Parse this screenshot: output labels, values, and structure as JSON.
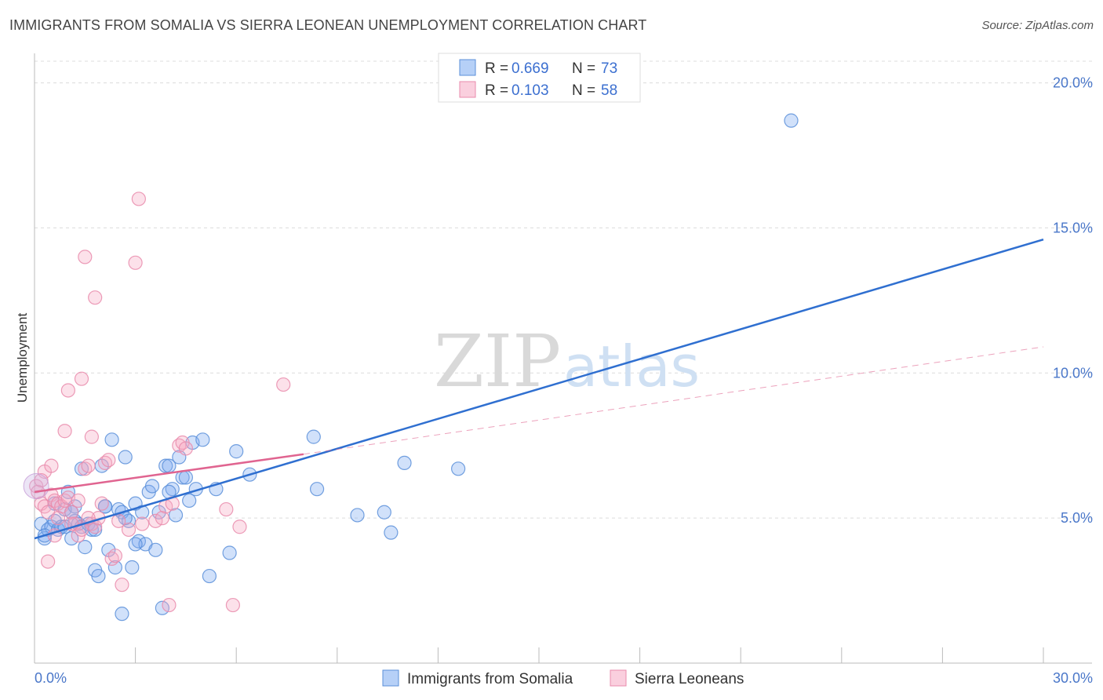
{
  "title": "IMMIGRANTS FROM SOMALIA VS SIERRA LEONEAN UNEMPLOYMENT CORRELATION CHART",
  "source": "Source: ZipAtlas.com",
  "watermark": {
    "zip": "ZIP",
    "atlas": "atlas"
  },
  "chart_data": {
    "type": "scatter",
    "ylabel": "Unemployment",
    "xlabel": "",
    "xlim": [
      0,
      30
    ],
    "ylim": [
      0,
      20.8
    ],
    "x_tick_labels": [
      {
        "value": 0,
        "label": "0.0%"
      },
      {
        "value": 30,
        "label": "30.0%"
      }
    ],
    "x_minor_ticks": [
      3,
      6,
      9,
      12,
      15,
      18,
      21,
      24,
      27,
      30
    ],
    "y_ticks": [
      {
        "value": 5,
        "label": "5.0%"
      },
      {
        "value": 10,
        "label": "10.0%"
      },
      {
        "value": 15,
        "label": "15.0%"
      },
      {
        "value": 20,
        "label": "20.0%"
      }
    ],
    "grid": true,
    "legend_position": "top-center",
    "series": [
      {
        "name": "Immigrants from Somalia",
        "color": "#7aaaf0",
        "stroke": "#5b8fd9",
        "line_color": "#2f6fd0",
        "R": "0.669",
        "N": "73",
        "trend": {
          "x0": 0,
          "y0": 4.3,
          "x1": 30,
          "y1": 14.6,
          "dashed_extension": false
        },
        "points": [
          [
            0.2,
            4.8
          ],
          [
            0.3,
            4.3
          ],
          [
            0.4,
            4.6
          ],
          [
            0.5,
            4.7
          ],
          [
            0.6,
            4.9
          ],
          [
            0.7,
            4.6
          ],
          [
            0.8,
            4.7
          ],
          [
            0.9,
            5.3
          ],
          [
            1.0,
            5.9
          ],
          [
            1.1,
            4.3
          ],
          [
            1.2,
            4.9
          ],
          [
            1.3,
            4.8
          ],
          [
            1.4,
            4.7
          ],
          [
            1.5,
            4.0
          ],
          [
            1.6,
            4.8
          ],
          [
            1.7,
            4.6
          ],
          [
            1.8,
            3.2
          ],
          [
            1.9,
            3.0
          ],
          [
            2.0,
            6.8
          ],
          [
            2.1,
            5.4
          ],
          [
            2.2,
            3.9
          ],
          [
            2.3,
            7.7
          ],
          [
            2.4,
            3.3
          ],
          [
            2.5,
            5.3
          ],
          [
            2.6,
            5.2
          ],
          [
            2.7,
            7.1
          ],
          [
            2.8,
            4.9
          ],
          [
            2.9,
            3.3
          ],
          [
            3.0,
            5.5
          ],
          [
            3.1,
            4.2
          ],
          [
            3.2,
            5.2
          ],
          [
            3.3,
            4.1
          ],
          [
            3.4,
            5.9
          ],
          [
            3.5,
            6.1
          ],
          [
            3.6,
            3.9
          ],
          [
            3.7,
            5.2
          ],
          [
            3.8,
            1.9
          ],
          [
            3.9,
            6.8
          ],
          [
            4.0,
            6.8
          ],
          [
            4.1,
            6.0
          ],
          [
            4.2,
            5.1
          ],
          [
            4.3,
            7.1
          ],
          [
            4.4,
            6.4
          ],
          [
            4.5,
            6.4
          ],
          [
            4.6,
            5.6
          ],
          [
            4.7,
            7.6
          ],
          [
            4.8,
            6.0
          ],
          [
            5.0,
            7.7
          ],
          [
            5.2,
            3.0
          ],
          [
            5.4,
            6.0
          ],
          [
            5.8,
            3.8
          ],
          [
            6.0,
            7.3
          ],
          [
            6.4,
            6.5
          ],
          [
            8.3,
            7.8
          ],
          [
            8.4,
            6.0
          ],
          [
            9.6,
            5.1
          ],
          [
            10.4,
            5.2
          ],
          [
            10.6,
            4.5
          ],
          [
            11.0,
            6.9
          ],
          [
            12.6,
            6.7
          ],
          [
            22.5,
            18.7
          ],
          [
            2.6,
            1.7
          ],
          [
            1.4,
            6.7
          ],
          [
            0.9,
            4.7
          ],
          [
            1.2,
            5.4
          ],
          [
            2.1,
            5.4
          ],
          [
            3.0,
            4.1
          ],
          [
            1.8,
            4.6
          ],
          [
            0.6,
            5.5
          ],
          [
            4.0,
            5.9
          ],
          [
            0.3,
            4.4
          ],
          [
            1.1,
            5.2
          ],
          [
            2.7,
            5.0
          ]
        ]
      },
      {
        "name": "Sierra Leoneans",
        "color": "#f5a8c2",
        "stroke": "#e98bac",
        "line_color": "#e06490",
        "R": "0.103",
        "N": "58",
        "trend": {
          "x0": 0,
          "y0": 5.9,
          "x1": 8.0,
          "y1": 7.2,
          "dashed_extension": true,
          "dash_x1": 30,
          "dash_y1": 10.9
        },
        "points": [
          [
            0.05,
            6.1
          ],
          [
            0.1,
            5.9
          ],
          [
            0.2,
            5.5
          ],
          [
            0.3,
            5.4
          ],
          [
            0.4,
            5.2
          ],
          [
            0.5,
            5.8
          ],
          [
            0.6,
            5.6
          ],
          [
            0.7,
            5.5
          ],
          [
            0.8,
            5.4
          ],
          [
            0.9,
            5.6
          ],
          [
            1.0,
            5.7
          ],
          [
            1.1,
            5.2
          ],
          [
            1.2,
            4.8
          ],
          [
            1.3,
            4.4
          ],
          [
            1.4,
            4.6
          ],
          [
            1.5,
            6.7
          ],
          [
            1.6,
            6.8
          ],
          [
            1.7,
            4.8
          ],
          [
            1.8,
            4.7
          ],
          [
            1.9,
            5.0
          ],
          [
            2.0,
            5.5
          ],
          [
            2.1,
            6.9
          ],
          [
            2.2,
            7.0
          ],
          [
            2.3,
            3.6
          ],
          [
            2.4,
            3.7
          ],
          [
            2.5,
            4.9
          ],
          [
            2.6,
            2.7
          ],
          [
            2.8,
            4.6
          ],
          [
            3.0,
            13.8
          ],
          [
            3.1,
            16.0
          ],
          [
            3.2,
            4.8
          ],
          [
            3.6,
            4.9
          ],
          [
            3.8,
            5.0
          ],
          [
            3.9,
            5.4
          ],
          [
            4.0,
            2.0
          ],
          [
            4.1,
            5.5
          ],
          [
            4.3,
            7.5
          ],
          [
            4.4,
            7.6
          ],
          [
            4.5,
            7.4
          ],
          [
            0.9,
            8.0
          ],
          [
            1.0,
            9.4
          ],
          [
            1.4,
            9.8
          ],
          [
            1.5,
            14.0
          ],
          [
            1.8,
            12.6
          ],
          [
            1.7,
            7.8
          ],
          [
            5.7,
            5.3
          ],
          [
            5.9,
            2.0
          ],
          [
            6.1,
            4.7
          ],
          [
            7.4,
            9.6
          ],
          [
            0.4,
            3.5
          ],
          [
            0.6,
            4.4
          ],
          [
            0.3,
            6.6
          ],
          [
            0.7,
            5.0
          ],
          [
            1.1,
            4.8
          ],
          [
            0.2,
            6.3
          ],
          [
            1.3,
            5.6
          ],
          [
            0.5,
            6.8
          ],
          [
            1.6,
            5.0
          ]
        ]
      }
    ]
  }
}
